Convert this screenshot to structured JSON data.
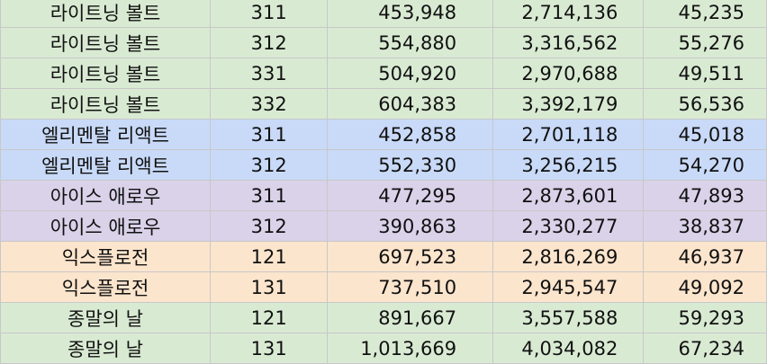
{
  "colors": {
    "green": "#d9ead3",
    "blue": "#c9daf8",
    "purple": "#d9d2e9",
    "orange": "#fce5cd"
  },
  "rows": [
    {
      "name": "라이트닝 볼트",
      "code": "311",
      "a": "453,948",
      "b": "2,714,136",
      "c": "45,235",
      "color": "green"
    },
    {
      "name": "라이트닝 볼트",
      "code": "312",
      "a": "554,880",
      "b": "3,316,562",
      "c": "55,276",
      "color": "green"
    },
    {
      "name": "라이트닝 볼트",
      "code": "331",
      "a": "504,920",
      "b": "2,970,688",
      "c": "49,511",
      "color": "green"
    },
    {
      "name": "라이트닝 볼트",
      "code": "332",
      "a": "604,383",
      "b": "3,392,179",
      "c": "56,536",
      "color": "green"
    },
    {
      "name": "엘리멘탈 리액트",
      "code": "311",
      "a": "452,858",
      "b": "2,701,118",
      "c": "45,018",
      "color": "blue"
    },
    {
      "name": "엘리멘탈 리액트",
      "code": "312",
      "a": "552,330",
      "b": "3,256,215",
      "c": "54,270",
      "color": "blue"
    },
    {
      "name": "아이스 애로우",
      "code": "311",
      "a": "477,295",
      "b": "2,873,601",
      "c": "47,893",
      "color": "purple"
    },
    {
      "name": "아이스 애로우",
      "code": "312",
      "a": "390,863",
      "b": "2,330,277",
      "c": "38,837",
      "color": "purple"
    },
    {
      "name": "익스플로전",
      "code": "121",
      "a": "697,523",
      "b": "2,816,269",
      "c": "46,937",
      "color": "orange"
    },
    {
      "name": "익스플로전",
      "code": "131",
      "a": "737,510",
      "b": "2,945,547",
      "c": "49,092",
      "color": "orange"
    },
    {
      "name": "종말의 날",
      "code": "121",
      "a": "891,667",
      "b": "3,557,588",
      "c": "59,293",
      "color": "green"
    },
    {
      "name": "종말의 날",
      "code": "131",
      "a": "1,013,669",
      "b": "4,034,082",
      "c": "67,234",
      "color": "green"
    }
  ]
}
